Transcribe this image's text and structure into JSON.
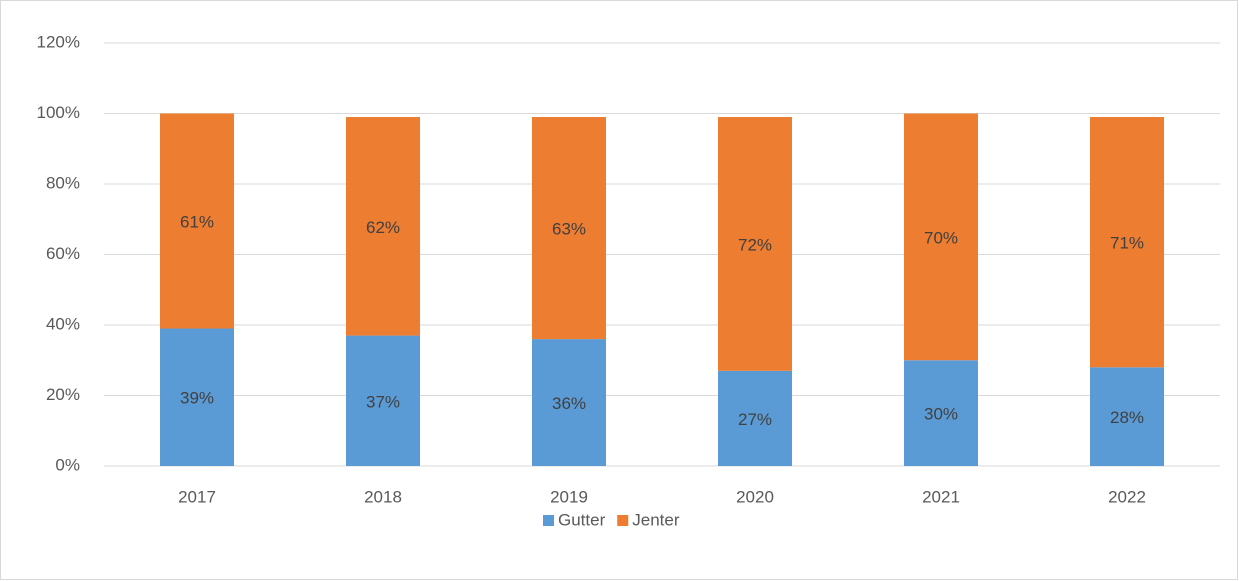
{
  "chart_data": {
    "type": "stacked_bar",
    "categories": [
      "2017",
      "2018",
      "2019",
      "2020",
      "2021",
      "2022"
    ],
    "series": [
      {
        "name": "Gutter",
        "color": "#5b9bd5",
        "values": [
          39,
          37,
          36,
          27,
          30,
          28
        ],
        "value_labels": [
          "39%",
          "37%",
          "36%",
          "27%",
          "30%",
          "28%"
        ]
      },
      {
        "name": "Jenter",
        "color": "#ed7d31",
        "values": [
          61,
          62,
          63,
          72,
          70,
          71
        ],
        "value_labels": [
          "61%",
          "62%",
          "63%",
          "72%",
          "70%",
          "71%"
        ]
      }
    ],
    "ylim": [
      0,
      120
    ],
    "yticks": [
      {
        "value": 0,
        "label": "0%"
      },
      {
        "value": 20,
        "label": "20%"
      },
      {
        "value": 40,
        "label": "40%"
      },
      {
        "value": 60,
        "label": "60%"
      },
      {
        "value": 80,
        "label": "80%"
      },
      {
        "value": 100,
        "label": "100%"
      },
      {
        "value": 120,
        "label": "120%"
      }
    ],
    "grid": true,
    "legend": "bottom"
  }
}
